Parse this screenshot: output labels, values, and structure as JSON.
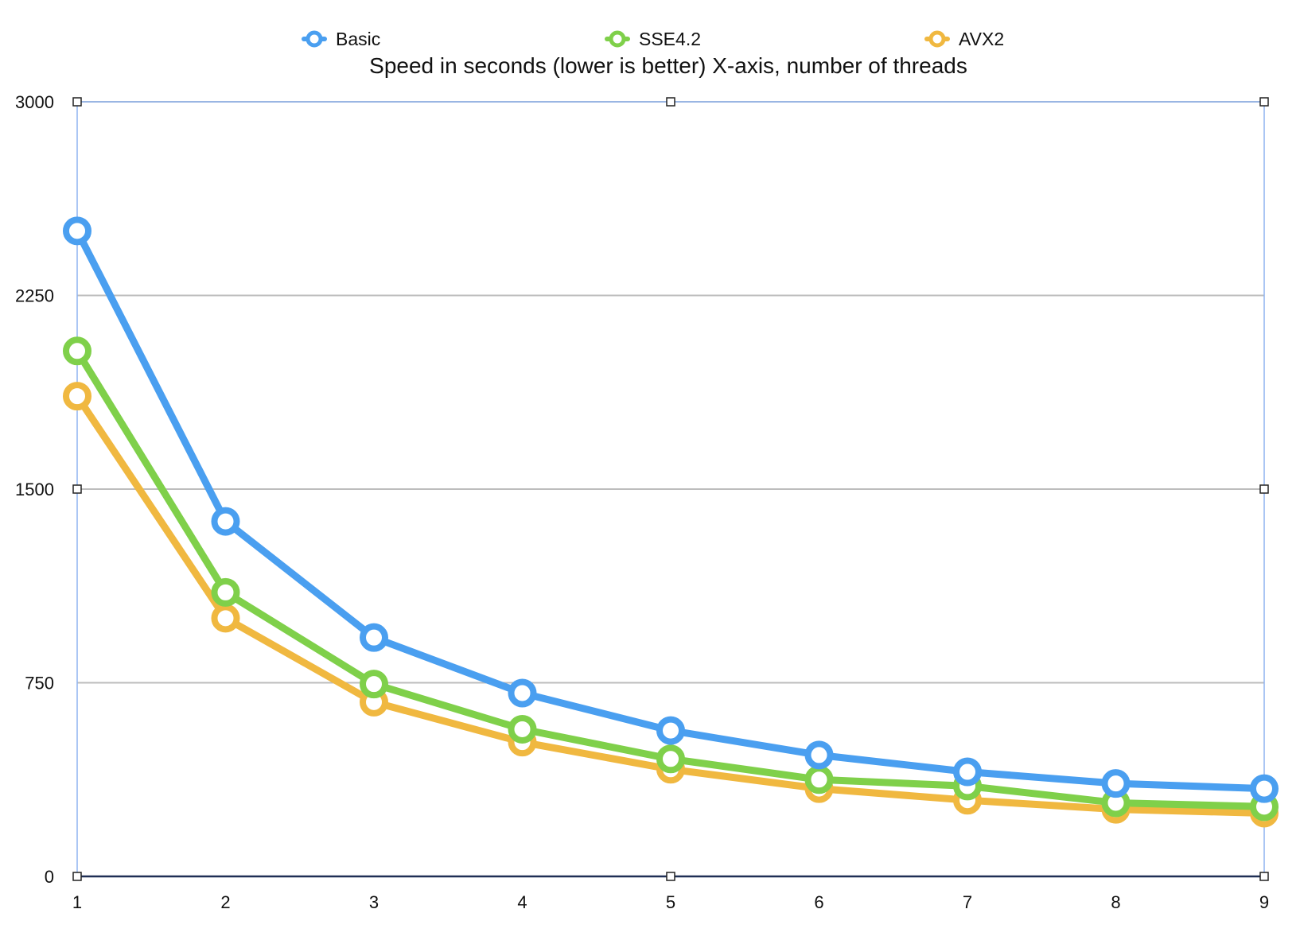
{
  "chart_data": {
    "type": "line",
    "title": "Speed in seconds (lower is better) X-axis, number of threads",
    "xlabel": "",
    "ylabel": "",
    "x": [
      "1",
      "2",
      "3",
      "4",
      "5",
      "6",
      "7",
      "8",
      "9"
    ],
    "yticks": [
      "0",
      "750",
      "1500",
      "2250",
      "3000"
    ],
    "ylim": [
      0,
      3000
    ],
    "grid": "horizontal",
    "legend_position": "top",
    "series": [
      {
        "name": "Basic",
        "color": "#4a9ff0",
        "values": [
          2500,
          1375,
          925,
          710,
          565,
          470,
          405,
          360,
          340
        ]
      },
      {
        "name": "SSE4.2",
        "color": "#7fd04a",
        "values": [
          2035,
          1100,
          745,
          570,
          455,
          375,
          350,
          285,
          270
        ]
      },
      {
        "name": "AVX2",
        "color": "#f0b840",
        "values": [
          1860,
          1000,
          675,
          520,
          415,
          340,
          295,
          260,
          245
        ]
      }
    ]
  }
}
